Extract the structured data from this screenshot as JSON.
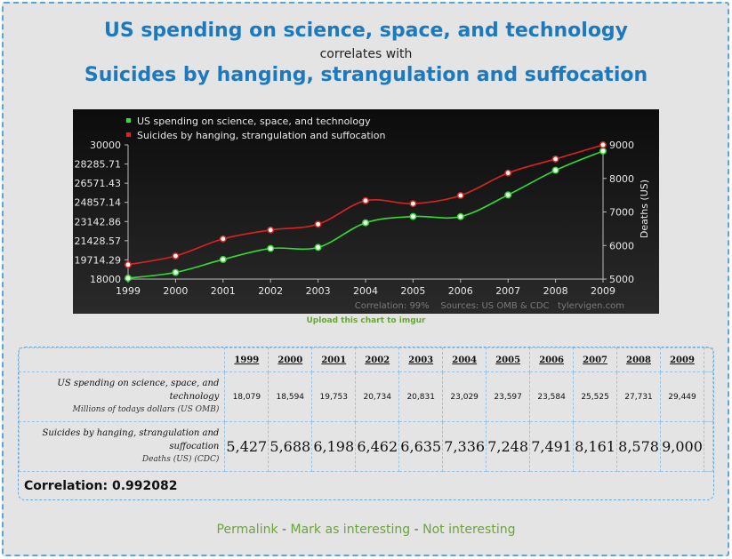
{
  "header": {
    "title1": "US spending on science, space, and technology",
    "correlates": "correlates with",
    "title2": "Suicides by hanging, strangulation and suffocation"
  },
  "upload_link": "Upload this chart to imgur",
  "chart_data": {
    "type": "line",
    "x": [
      1999,
      2000,
      2001,
      2002,
      2003,
      2004,
      2005,
      2006,
      2007,
      2008,
      2009
    ],
    "series": [
      {
        "name": "US spending on science, space, and technology",
        "axis": "left",
        "color": "#33dd33",
        "values": [
          18079,
          18594,
          19753,
          20734,
          20831,
          23029,
          23597,
          23584,
          25525,
          27731,
          29449
        ]
      },
      {
        "name": "Suicides by hanging, strangulation and suffocation",
        "axis": "right",
        "color": "#dd2222",
        "values": [
          5427,
          5688,
          6198,
          6462,
          6635,
          7336,
          7248,
          7491,
          8161,
          8578,
          9000
        ]
      }
    ],
    "y_left": {
      "range": [
        18000,
        30000
      ],
      "ticks": [
        "18000",
        "19714.29",
        "21428.57",
        "23142.86",
        "24857.14",
        "26571.43",
        "28285.71",
        "30000"
      ]
    },
    "y_right": {
      "range": [
        5000,
        9000
      ],
      "ticks": [
        "5000",
        "6000",
        "7000",
        "8000",
        "9000"
      ],
      "label": "Deaths (US)"
    },
    "footer": "Correlation: 99%    Sources: US OMB & CDC   tylervigen.com",
    "legend_position": "top-left"
  },
  "table": {
    "years": [
      "1999",
      "2000",
      "2001",
      "2002",
      "2003",
      "2004",
      "2005",
      "2006",
      "2007",
      "2008",
      "2009"
    ],
    "row1": {
      "label": "US spending on science, space, and technology",
      "sub": "Millions of todays dollars (US OMB)",
      "values": [
        "18,079",
        "18,594",
        "19,753",
        "20,734",
        "20,831",
        "23,029",
        "23,597",
        "23,584",
        "25,525",
        "27,731",
        "29,449"
      ]
    },
    "row2": {
      "label": "Suicides by hanging, strangulation and suffocation",
      "sub": "Deaths (US) (CDC)",
      "values": [
        "5,427",
        "5,688",
        "6,198",
        "6,462",
        "6,635",
        "7,336",
        "7,248",
        "7,491",
        "8,161",
        "8,578",
        "9,000"
      ]
    },
    "correlation": "Correlation: 0.992082"
  },
  "links": {
    "permalink": "Permalink",
    "sep": " - ",
    "interesting": "Mark as interesting",
    "not_interesting": "Not interesting"
  }
}
